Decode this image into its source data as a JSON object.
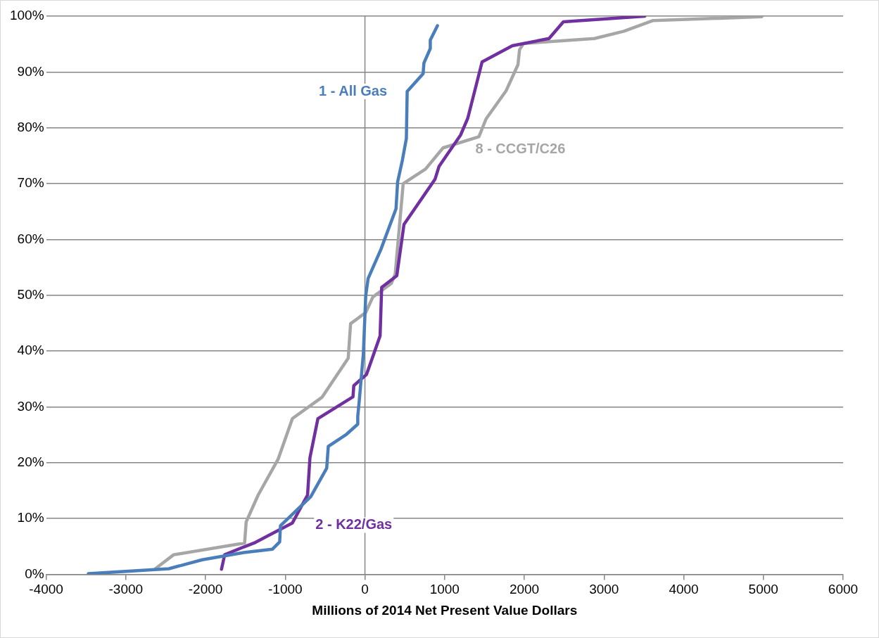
{
  "chart_data": {
    "type": "line",
    "xlabel": "Millions of 2014 Net Present Value Dollars",
    "xlim": [
      -4000,
      6000
    ],
    "xticks": [
      -4000,
      -3000,
      -2000,
      -1000,
      0,
      1000,
      2000,
      3000,
      4000,
      5000,
      6000
    ],
    "ylim": [
      0,
      100
    ],
    "yticks": [
      {
        "value": 0,
        "label": "0%"
      },
      {
        "value": 10,
        "label": "10%"
      },
      {
        "value": 20,
        "label": "20%"
      },
      {
        "value": 30,
        "label": "30%"
      },
      {
        "value": 40,
        "label": "40%"
      },
      {
        "value": 50,
        "label": "50%"
      },
      {
        "value": 60,
        "label": "60%"
      },
      {
        "value": 70,
        "label": "70%"
      },
      {
        "value": 80,
        "label": "80%"
      },
      {
        "value": 90,
        "label": "90%"
      },
      {
        "value": 100,
        "label": "100%"
      }
    ],
    "grid": "y",
    "legend": false,
    "marker": "none",
    "line_style": "solid",
    "ref_lines": [
      {
        "axis": "x",
        "value": 0,
        "color": "#868686"
      }
    ],
    "series": [
      {
        "color": "#4a7ebb",
        "x": [
          -3470,
          -2460,
          -2040,
          -1520,
          -1160,
          -1070,
          -1060,
          -680,
          -480,
          -460,
          -230,
          -90,
          -90,
          -70,
          -20,
          10,
          40,
          200,
          390,
          410,
          470,
          520,
          530,
          730,
          740,
          820,
          820,
          910
        ],
        "values": [
          0.1,
          1.0,
          2.6,
          3.9,
          4.5,
          5.8,
          8.7,
          13.9,
          19.0,
          22.9,
          25.1,
          26.9,
          28.3,
          31.3,
          39.5,
          49.9,
          53.0,
          58.2,
          65.5,
          70.3,
          74.2,
          78.1,
          86.5,
          89.7,
          91.6,
          94.2,
          95.7,
          98.3
        ]
      },
      {
        "color": "#7030a0",
        "x": [
          -1800,
          -1760,
          -1520,
          -1390,
          -910,
          -770,
          -720,
          -690,
          -590,
          -150,
          -140,
          20,
          190,
          210,
          400,
          490,
          880,
          930,
          1200,
          1290,
          1470,
          1850,
          2310,
          2490,
          3510
        ],
        "values": [
          0.9,
          3.5,
          4.9,
          5.6,
          9.2,
          12.9,
          14.2,
          20.9,
          27.9,
          31.8,
          33.8,
          35.8,
          42.7,
          51.4,
          53.5,
          62.7,
          70.8,
          73.1,
          78.7,
          81.7,
          91.8,
          94.7,
          96.0,
          99.0,
          100
        ]
      },
      {
        "color": "#a6a6a6",
        "x": [
          -2630,
          -2400,
          -1510,
          -1490,
          -1340,
          -1090,
          -910,
          -540,
          -210,
          -180,
          10,
          100,
          330,
          380,
          480,
          760,
          980,
          1430,
          1520,
          1770,
          1920,
          1940,
          1990,
          2880,
          3250,
          3610,
          4980
        ],
        "values": [
          1.0,
          3.5,
          5.6,
          9.4,
          14.2,
          20.6,
          27.9,
          31.7,
          38.7,
          44.9,
          46.9,
          49.7,
          52.1,
          53.8,
          70.0,
          72.6,
          76.4,
          78.4,
          81.6,
          86.6,
          91.3,
          94.0,
          95.1,
          96.0,
          97.3,
          99.2,
          99.9
        ]
      }
    ],
    "annotations": [
      "1 - All Gas",
      "2 - K22/Gas",
      "8 - CCGT/C26"
    ]
  }
}
